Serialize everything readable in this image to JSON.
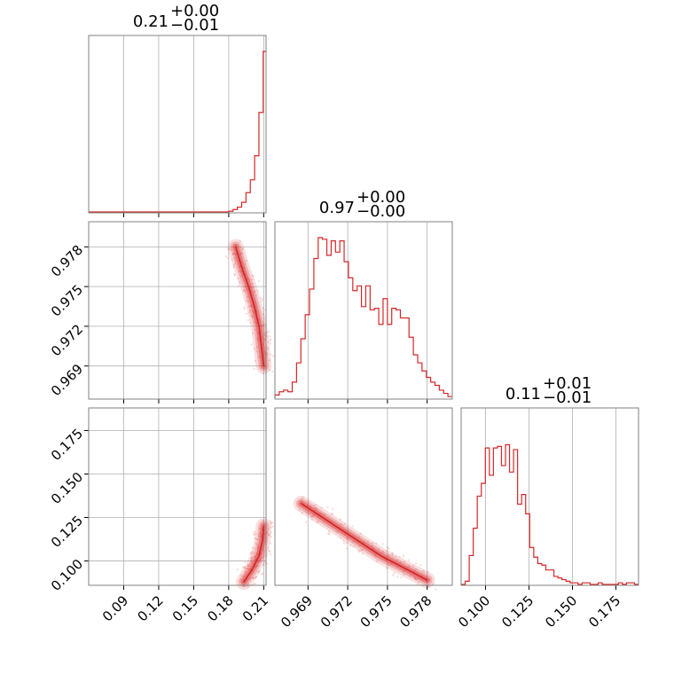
{
  "chart_data": {
    "type": "corner",
    "color": "#d62728",
    "parameters": [
      {
        "title_value": "0.21",
        "title_plus": "+0.00",
        "title_minus": "−0.01",
        "range": [
          0.06,
          0.212
        ],
        "ticks": [
          0.09,
          0.12,
          0.15,
          0.18,
          0.21
        ],
        "tick_labels": [
          "0.09",
          "0.12",
          "0.15",
          "0.18",
          "0.21"
        ],
        "hist_x": [
          0.18,
          0.1837,
          0.1874,
          0.1911,
          0.1948,
          0.1985,
          0.2022,
          0.2059,
          0.2096,
          0.212
        ],
        "hist_y": [
          0.005,
          0.015,
          0.03,
          0.06,
          0.12,
          0.2,
          0.35,
          0.62,
          1.0,
          1.0
        ]
      },
      {
        "title_value": "0.97",
        "title_plus": "+0.00",
        "title_minus": "−0.00",
        "range": [
          0.9665,
          0.9799
        ],
        "ticks": [
          0.969,
          0.972,
          0.975,
          0.978
        ],
        "tick_labels": [
          "0.969",
          "0.972",
          "0.975",
          "0.978"
        ],
        "hist_y": [
          0.02,
          0.04,
          0.05,
          0.04,
          0.1,
          0.22,
          0.37,
          0.52,
          0.68,
          0.87,
          1.0,
          0.99,
          0.89,
          0.98,
          0.91,
          0.98,
          0.85,
          0.75,
          0.67,
          0.7,
          0.57,
          0.7,
          0.55,
          0.56,
          0.46,
          0.62,
          0.46,
          0.56,
          0.55,
          0.5,
          0.5,
          0.38,
          0.27,
          0.22,
          0.17,
          0.13,
          0.1,
          0.08,
          0.05,
          0.03,
          0.01
        ]
      },
      {
        "title_value": "0.11",
        "title_plus": "+0.01",
        "title_minus": "−0.01",
        "range": [
          0.086,
          0.188
        ],
        "ticks": [
          0.1,
          0.125,
          0.15,
          0.175
        ],
        "tick_labels": [
          "0.100",
          "0.125",
          "0.150",
          "0.175"
        ],
        "hist_y": [
          0.0,
          0.02,
          0.18,
          0.35,
          0.55,
          0.63,
          0.85,
          0.68,
          0.85,
          0.86,
          0.74,
          0.87,
          0.7,
          0.84,
          0.5,
          0.56,
          0.44,
          0.23,
          0.17,
          0.13,
          0.12,
          0.09,
          0.09,
          0.05,
          0.04,
          0.03,
          0.02,
          0.01,
          0.01,
          0.0,
          0.01,
          0.01,
          0.0,
          0.0,
          0.01,
          0.0,
          0.0,
          0.0,
          0.0,
          0.01,
          0.0,
          0.01,
          0.01,
          0.0
        ]
      }
    ],
    "contours": {
      "p1_vs_p0": {
        "center_x": 0.2035,
        "curve": [
          [
            0.186,
            0.978
          ],
          [
            0.191,
            0.9765
          ],
          [
            0.197,
            0.975
          ],
          [
            0.202,
            0.9735
          ],
          [
            0.206,
            0.972
          ],
          [
            0.208,
            0.9705
          ],
          [
            0.21,
            0.969
          ]
        ],
        "width": [
          0.004,
          0.006,
          0.008
        ]
      },
      "p2_vs_p0": {
        "curve": [
          [
            0.193,
            0.088
          ],
          [
            0.2,
            0.095
          ],
          [
            0.206,
            0.103
          ],
          [
            0.209,
            0.112
          ],
          [
            0.21,
            0.12
          ]
        ],
        "width": [
          0.004,
          0.006,
          0.008
        ]
      },
      "p2_vs_p1": {
        "curve": [
          [
            0.9685,
            0.133
          ],
          [
            0.9705,
            0.123
          ],
          [
            0.9725,
            0.113
          ],
          [
            0.9745,
            0.103
          ],
          [
            0.9765,
            0.095
          ],
          [
            0.978,
            0.089
          ]
        ],
        "width": [
          0.0028,
          0.004,
          0.0055
        ]
      }
    },
    "grid": true
  }
}
